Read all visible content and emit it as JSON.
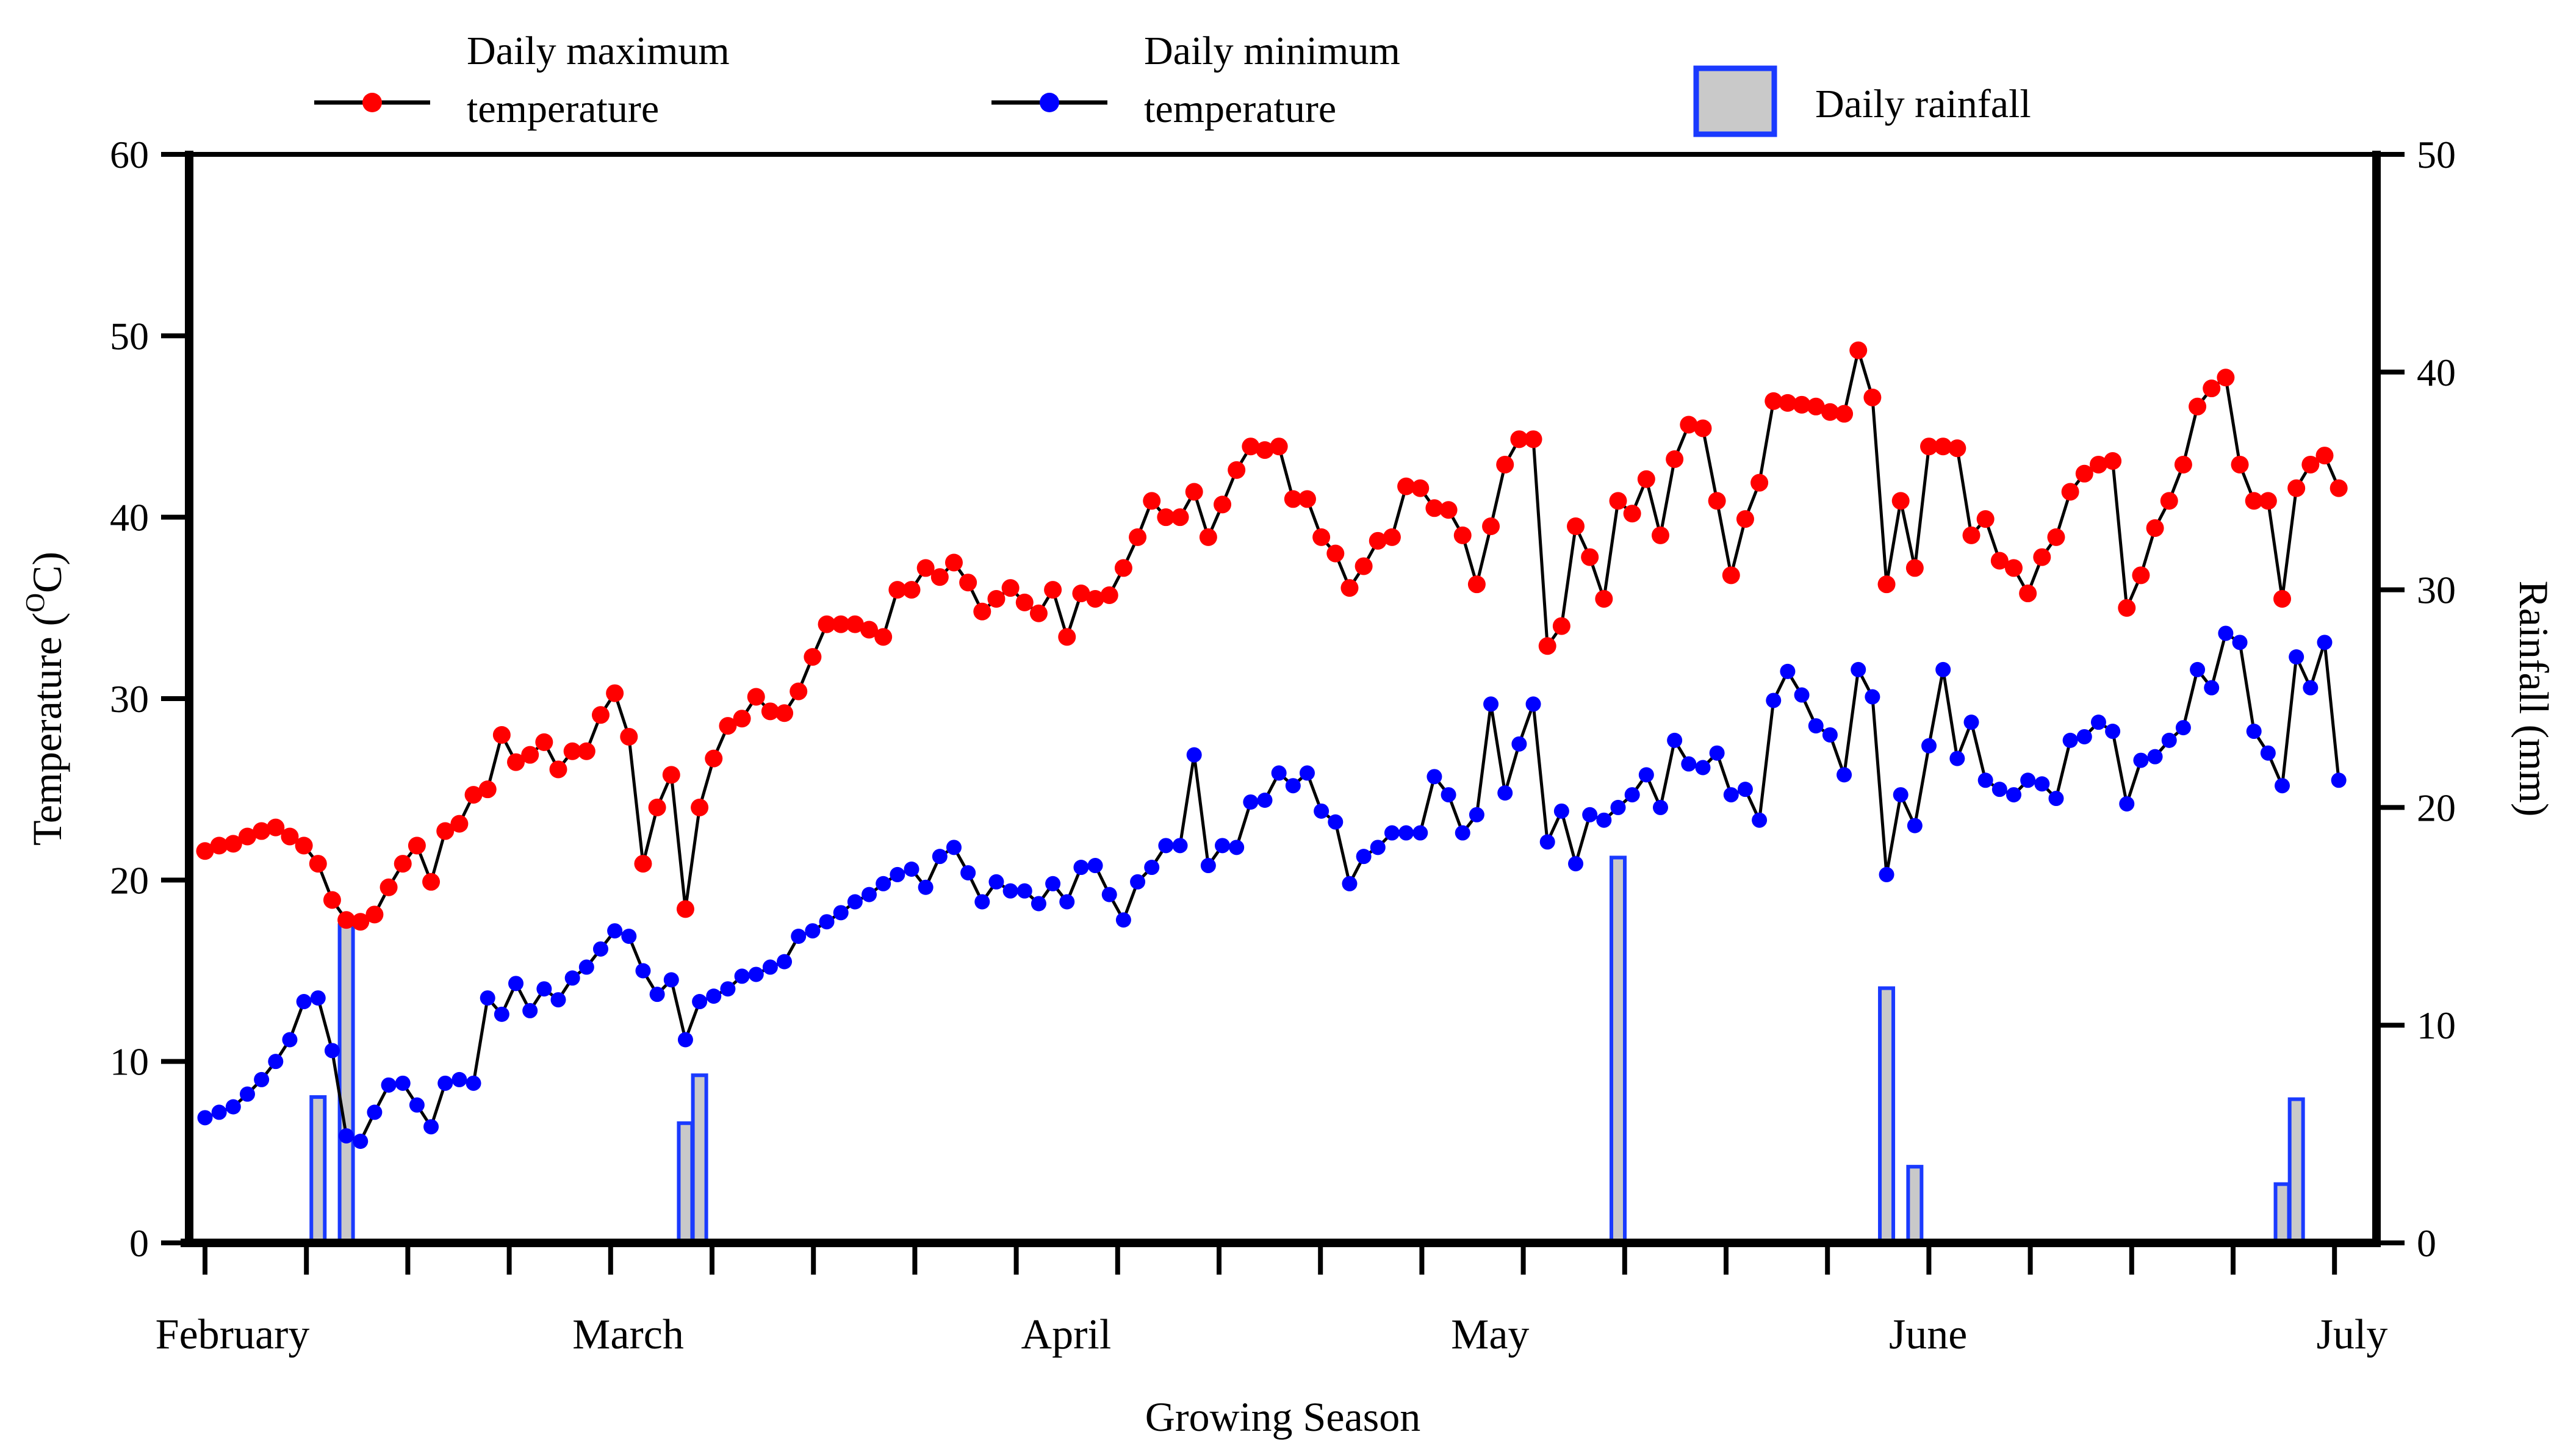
{
  "chart_data": {
    "type": "line+bar",
    "title": "",
    "xlabel": "Growing Season",
    "left_axis": {
      "label_prefix": "Temperature (",
      "label_sup": "O",
      "label_suffix": "C)",
      "ticks": [
        0,
        10,
        20,
        30,
        40,
        50,
        60
      ],
      "range": [
        0,
        60
      ]
    },
    "right_axis": {
      "label": "Rainfall (mm)",
      "ticks": [
        0,
        10,
        20,
        30,
        40,
        50
      ],
      "range": [
        0,
        50
      ]
    },
    "x_axis": {
      "months": [
        {
          "label": "February",
          "day_index": 0
        },
        {
          "label": "March",
          "day_index": 28
        },
        {
          "label": "April",
          "day_index": 59
        },
        {
          "label": "May",
          "day_index": 89
        },
        {
          "label": "June",
          "day_index": 120
        },
        {
          "label": "July",
          "day_index": 150
        }
      ],
      "n_days": 152,
      "grid": false
    },
    "legend": [
      {
        "id": "max-temp",
        "lines": [
          "Daily maximum",
          "temperature"
        ],
        "marker": "line-dot",
        "color": "#ff0000"
      },
      {
        "id": "min-temp",
        "lines": [
          "Daily minimum",
          "temperature"
        ],
        "marker": "line-dot",
        "color": "#0000ff"
      },
      {
        "id": "rainfall",
        "lines": [
          "Daily rainfall"
        ],
        "marker": "bar",
        "color": "#1a3aff",
        "fill": "#c9c9c9"
      }
    ],
    "series": [
      {
        "name": "Daily maximum temperature",
        "axis": "left",
        "color": "#ff0000",
        "values": [
          21.6,
          21.9,
          22.0,
          22.4,
          22.7,
          22.9,
          22.4,
          21.9,
          20.9,
          18.9,
          17.8,
          17.7,
          18.1,
          19.6,
          20.9,
          21.9,
          19.9,
          22.7,
          23.1,
          24.7,
          25.0,
          28.0,
          26.5,
          26.9,
          27.6,
          26.1,
          27.1,
          27.1,
          29.1,
          30.3,
          27.9,
          20.9,
          24.0,
          25.8,
          18.4,
          24.0,
          26.7,
          28.5,
          28.9,
          30.1,
          29.3,
          29.2,
          30.4,
          32.3,
          34.1,
          34.1,
          34.1,
          33.8,
          33.4,
          36.0,
          36.0,
          37.2,
          36.7,
          37.5,
          36.4,
          34.8,
          35.5,
          36.1,
          35.3,
          34.7,
          36.0,
          33.4,
          35.8,
          35.5,
          35.7,
          37.2,
          38.9,
          40.9,
          40.0,
          40.0,
          41.4,
          38.9,
          40.7,
          42.6,
          43.9,
          43.7,
          43.9,
          41.0,
          41.0,
          38.9,
          38.0,
          36.1,
          37.3,
          38.7,
          38.9,
          41.7,
          41.6,
          40.5,
          40.4,
          39.0,
          36.3,
          39.5,
          42.9,
          44.3,
          44.3,
          32.9,
          34.0,
          39.5,
          37.8,
          35.5,
          40.9,
          40.2,
          42.1,
          39.0,
          43.2,
          45.1,
          44.9,
          40.9,
          36.8,
          39.9,
          41.9,
          46.4,
          46.3,
          46.2,
          46.1,
          45.8,
          45.7,
          49.2,
          46.6,
          36.3,
          40.9,
          37.2,
          43.9,
          43.9,
          43.8,
          39.0,
          39.9,
          37.6,
          37.2,
          35.8,
          37.8,
          38.9,
          41.4,
          42.4,
          42.9,
          43.1,
          35.0,
          36.8,
          39.4,
          40.9,
          42.9,
          46.1,
          47.1,
          47.7,
          42.9,
          40.9,
          40.9,
          35.5,
          41.6,
          42.9,
          43.4,
          41.6
        ]
      },
      {
        "name": "Daily minimum temperature",
        "axis": "left",
        "color": "#0000ff",
        "values": [
          6.9,
          7.2,
          7.5,
          8.2,
          9.0,
          10.0,
          11.2,
          13.3,
          13.5,
          10.6,
          5.9,
          5.6,
          7.2,
          8.7,
          8.8,
          7.6,
          6.4,
          8.8,
          9.0,
          8.8,
          13.5,
          12.6,
          14.3,
          12.8,
          14.0,
          13.4,
          14.6,
          15.2,
          16.2,
          17.2,
          16.9,
          15.0,
          13.7,
          14.5,
          11.2,
          13.3,
          13.6,
          14.0,
          14.7,
          14.8,
          15.2,
          15.5,
          16.9,
          17.2,
          17.7,
          18.2,
          18.8,
          19.2,
          19.8,
          20.3,
          20.6,
          19.6,
          21.3,
          21.8,
          20.4,
          18.8,
          19.9,
          19.4,
          19.4,
          18.7,
          19.8,
          18.8,
          20.7,
          20.8,
          19.2,
          17.8,
          19.9,
          20.7,
          21.9,
          21.9,
          26.9,
          20.8,
          21.9,
          21.8,
          24.3,
          24.4,
          25.9,
          25.2,
          25.9,
          23.8,
          23.2,
          19.8,
          21.3,
          21.8,
          22.6,
          22.6,
          22.6,
          25.7,
          24.7,
          22.6,
          23.6,
          29.7,
          24.8,
          27.5,
          29.7,
          22.1,
          23.8,
          20.9,
          23.6,
          23.3,
          24.0,
          24.7,
          25.8,
          24.0,
          27.7,
          26.4,
          26.2,
          27.0,
          24.7,
          25.0,
          23.3,
          29.9,
          31.5,
          30.2,
          28.5,
          28.0,
          25.8,
          31.6,
          30.1,
          20.3,
          24.7,
          23.0,
          27.4,
          31.6,
          26.7,
          28.7,
          25.5,
          25.0,
          24.7,
          25.5,
          25.3,
          24.5,
          27.7,
          27.9,
          28.7,
          28.2,
          24.2,
          26.6,
          26.8,
          27.7,
          28.4,
          31.6,
          30.6,
          33.6,
          33.1,
          28.2,
          27.0,
          25.2,
          32.3,
          30.6,
          33.1,
          25.5
        ]
      }
    ],
    "rainfall_events": [
      {
        "day_index": 8,
        "mm": 6.7
      },
      {
        "day_index": 10,
        "mm": 14.6
      },
      {
        "day_index": 34,
        "mm": 5.5
      },
      {
        "day_index": 35,
        "mm": 7.7
      },
      {
        "day_index": 100,
        "mm": 17.7
      },
      {
        "day_index": 119,
        "mm": 11.7
      },
      {
        "day_index": 121,
        "mm": 3.5
      },
      {
        "day_index": 147,
        "mm": 2.7
      },
      {
        "day_index": 148,
        "mm": 6.6
      }
    ],
    "colors": {
      "max_temp": "#ff0000",
      "min_temp": "#0000ff",
      "line": "#000000",
      "bar_fill": "#c9c9c9",
      "bar_stroke": "#1a3aff",
      "axis": "#000000"
    }
  }
}
